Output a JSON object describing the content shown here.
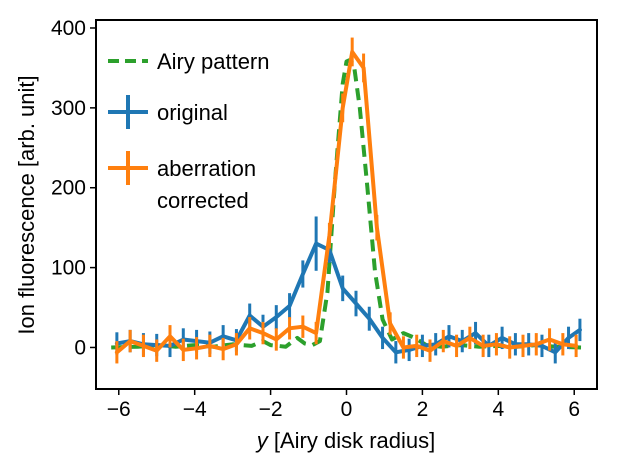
{
  "chart_data": {
    "type": "line",
    "xlabel_var": "y",
    "xlabel_rest": " [Airy disk radius]",
    "ylabel": "Ion fluorescence [arb. unit]",
    "xlim": [
      -6.6,
      6.6
    ],
    "ylim": [
      -52,
      410
    ],
    "xticks": [
      -6,
      -4,
      -2,
      0,
      2,
      4,
      6
    ],
    "xtick_labels": [
      "−6",
      "−4",
      "−2",
      "0",
      "2",
      "4",
      "6"
    ],
    "yticks": [
      0,
      100,
      200,
      300,
      400
    ],
    "ytick_labels": [
      "0",
      "100",
      "200",
      "300",
      "400"
    ],
    "grid": false,
    "legend_position": "upper-left",
    "series": [
      {
        "name": "Airy pattern",
        "style": "dashed",
        "color": "#2ca02c",
        "x": [
          -6.2,
          -5.5,
          -5.0,
          -4.5,
          -4.0,
          -3.5,
          -3.0,
          -2.5,
          -2.2,
          -2.0,
          -1.6,
          -1.3,
          -1.1,
          -0.9,
          -0.7,
          -0.5,
          -0.3,
          -0.1,
          0.0,
          0.1,
          0.2,
          0.35,
          0.55,
          0.75,
          0.95,
          1.2,
          1.5,
          1.8,
          2.1,
          2.5,
          3.0,
          3.5,
          4.0,
          4.5,
          5.0,
          5.5,
          6.2
        ],
        "values": [
          0,
          1,
          3,
          1,
          3,
          1,
          4,
          2,
          8,
          3,
          1,
          12,
          5,
          3,
          8,
          70,
          210,
          330,
          358,
          360,
          352,
          300,
          200,
          95,
          35,
          10,
          18,
          12,
          3,
          1,
          3,
          1,
          2,
          1,
          3,
          1,
          0
        ]
      },
      {
        "name": "original",
        "style": "errorbar",
        "color": "#1f77b4",
        "x": [
          -6.05,
          -5.7,
          -5.35,
          -5.0,
          -4.65,
          -4.3,
          -3.95,
          -3.6,
          -3.25,
          -2.9,
          -2.55,
          -2.2,
          -1.85,
          -1.5,
          -1.15,
          -0.8,
          -0.45,
          -0.1,
          0.25,
          0.6,
          0.95,
          1.3,
          1.65,
          2.0,
          2.35,
          2.7,
          3.05,
          3.4,
          3.75,
          4.1,
          4.45,
          4.8,
          5.15,
          5.5,
          5.85,
          6.15
        ],
        "values": [
          5,
          8,
          4,
          3,
          2,
          10,
          8,
          6,
          14,
          9,
          40,
          26,
          38,
          52,
          92,
          130,
          122,
          74,
          55,
          36,
          12,
          -6,
          -3,
          2,
          4,
          14,
          8,
          18,
          2,
          12,
          4,
          4,
          2,
          -6,
          12,
          22
        ],
        "errors": [
          14,
          14,
          14,
          14,
          14,
          14,
          14,
          14,
          14,
          14,
          15,
          15,
          15,
          16,
          17,
          34,
          16,
          16,
          16,
          15,
          14,
          14,
          14,
          14,
          14,
          14,
          14,
          14,
          14,
          14,
          14,
          14,
          14,
          14,
          14,
          14
        ]
      },
      {
        "name": "aberration corrected",
        "style": "errorbar",
        "color": "#ff7f0e",
        "x": [
          -6.05,
          -5.7,
          -5.35,
          -5.0,
          -4.65,
          -4.3,
          -3.95,
          -3.6,
          -3.25,
          -2.9,
          -2.55,
          -2.2,
          -1.85,
          -1.5,
          -1.15,
          -0.8,
          -0.45,
          -0.1,
          0.15,
          0.45,
          0.8,
          1.15,
          1.5,
          1.85,
          2.2,
          2.55,
          2.9,
          3.25,
          3.6,
          3.95,
          4.3,
          4.65,
          5.0,
          5.35,
          5.7,
          6.05
        ],
        "values": [
          -6,
          8,
          2,
          -4,
          14,
          -3,
          -1,
          2,
          -2,
          4,
          24,
          18,
          10,
          24,
          26,
          18,
          140,
          300,
          370,
          350,
          150,
          30,
          0,
          2,
          -4,
          8,
          2,
          12,
          2,
          4,
          0,
          2,
          4,
          10,
          4,
          2
        ],
        "errors": [
          14,
          14,
          14,
          14,
          14,
          14,
          14,
          14,
          14,
          14,
          14,
          14,
          14,
          14,
          14,
          14,
          16,
          18,
          18,
          18,
          16,
          14,
          14,
          14,
          14,
          14,
          14,
          14,
          14,
          14,
          14,
          14,
          14,
          14,
          14,
          14
        ]
      }
    ]
  },
  "legend": {
    "airy_label": "Airy pattern",
    "original_label": "original",
    "corrected_line1": "aberration",
    "corrected_line2": "corrected"
  }
}
